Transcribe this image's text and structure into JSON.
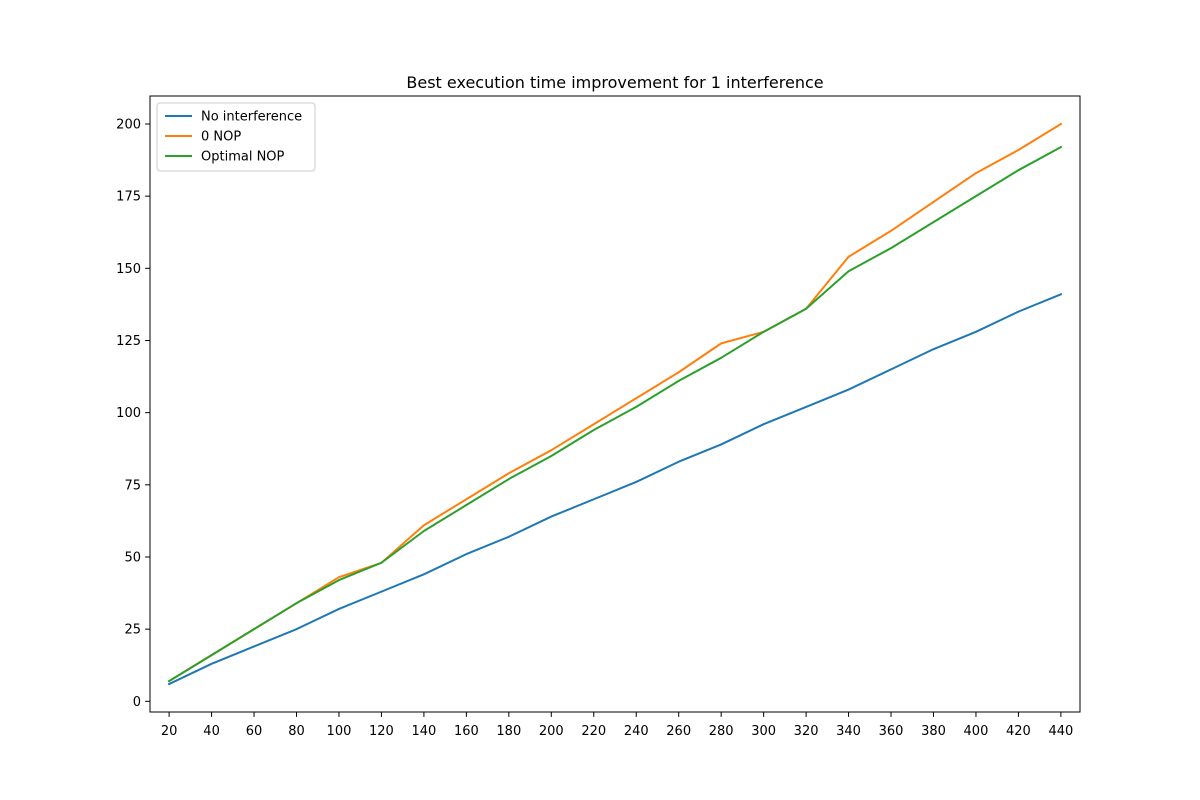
{
  "chart_data": {
    "type": "line",
    "title": "Best execution time improvement for 1 interference",
    "xlabel": "",
    "ylabel": "",
    "x": [
      20,
      40,
      60,
      80,
      100,
      120,
      140,
      160,
      180,
      200,
      220,
      240,
      260,
      280,
      300,
      320,
      340,
      360,
      380,
      400,
      420,
      440
    ],
    "xticks": [
      20,
      40,
      60,
      80,
      100,
      120,
      140,
      160,
      180,
      200,
      220,
      240,
      260,
      280,
      300,
      320,
      340,
      360,
      380,
      400,
      420,
      440
    ],
    "yticks": [
      0,
      25,
      50,
      75,
      100,
      125,
      150,
      175,
      200
    ],
    "xlim": [
      11.0,
      449.0
    ],
    "ylim": [
      -3.7,
      209.7
    ],
    "grid": false,
    "legend_position": "upper-left",
    "series": [
      {
        "name": "No interference",
        "color": "#1f77b4",
        "values": [
          6,
          13,
          19,
          25,
          32,
          38,
          44,
          51,
          57,
          64,
          70,
          76,
          83,
          89,
          96,
          102,
          108,
          115,
          122,
          128,
          135,
          141
        ]
      },
      {
        "name": "0 NOP",
        "color": "#ff7f0e",
        "values": [
          7,
          16,
          25,
          34,
          43,
          48,
          61,
          70,
          79,
          87,
          96,
          105,
          114,
          124,
          128,
          136,
          154,
          163,
          173,
          183,
          191,
          200
        ]
      },
      {
        "name": "Optimal NOP",
        "color": "#2ca02c",
        "values": [
          7,
          16,
          25,
          34,
          42,
          48,
          59,
          68,
          77,
          85,
          94,
          102,
          111,
          119,
          128,
          136,
          149,
          157,
          166,
          175,
          184,
          192
        ]
      }
    ]
  }
}
